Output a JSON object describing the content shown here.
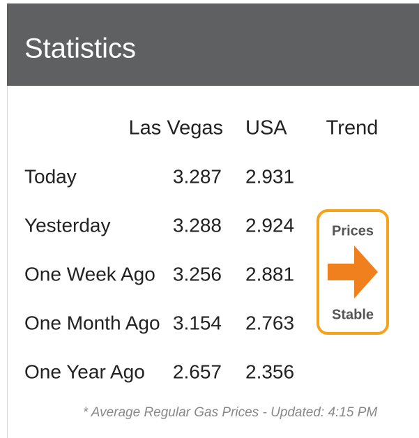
{
  "header": {
    "title": "Statistics"
  },
  "table": {
    "columns": [
      "Las Vegas",
      "USA",
      "Trend"
    ],
    "rows": [
      [
        "Today",
        "3.287",
        "2.931"
      ],
      [
        "Yesterday",
        "3.288",
        "2.924"
      ],
      [
        "One Week Ago",
        "3.256",
        "2.881"
      ],
      [
        "One Month Ago",
        "3.154",
        "2.763"
      ],
      [
        "One Year Ago",
        "2.657",
        "2.356"
      ]
    ]
  },
  "trend": {
    "top": "Prices",
    "bottom": "Stable"
  },
  "footnote": "* Average Regular Gas Prices - Updated: 4:15 PM"
}
